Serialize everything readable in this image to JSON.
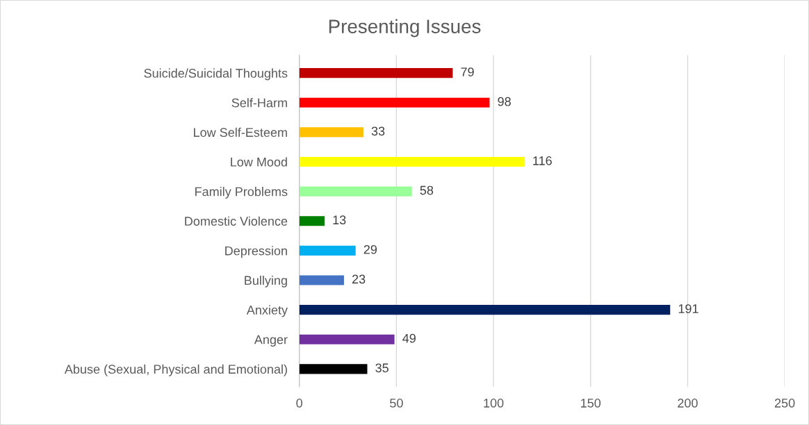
{
  "chart_data": {
    "type": "bar",
    "orientation": "horizontal",
    "title": "Presenting Issues",
    "categories": [
      "Suicide/Suicidal Thoughts",
      "Self-Harm",
      "Low Self-Esteem",
      "Low Mood",
      "Family Problems",
      "Domestic Violence",
      "Depression",
      "Bullying",
      "Anxiety",
      "Anger",
      "Abuse (Sexual, Physical and Emotional)"
    ],
    "values": [
      79,
      98,
      33,
      116,
      58,
      13,
      29,
      23,
      191,
      49,
      35
    ],
    "colors": [
      "#c00000",
      "#ff0000",
      "#ffc000",
      "#ffff00",
      "#99ff99",
      "#008000",
      "#00b0f0",
      "#4472c4",
      "#002060",
      "#7030a0",
      "#000000"
    ],
    "xlim": [
      0,
      250
    ],
    "xticks": [
      0,
      50,
      100,
      150,
      200,
      250
    ],
    "grid": "x",
    "data_labels": true,
    "legend": false
  }
}
